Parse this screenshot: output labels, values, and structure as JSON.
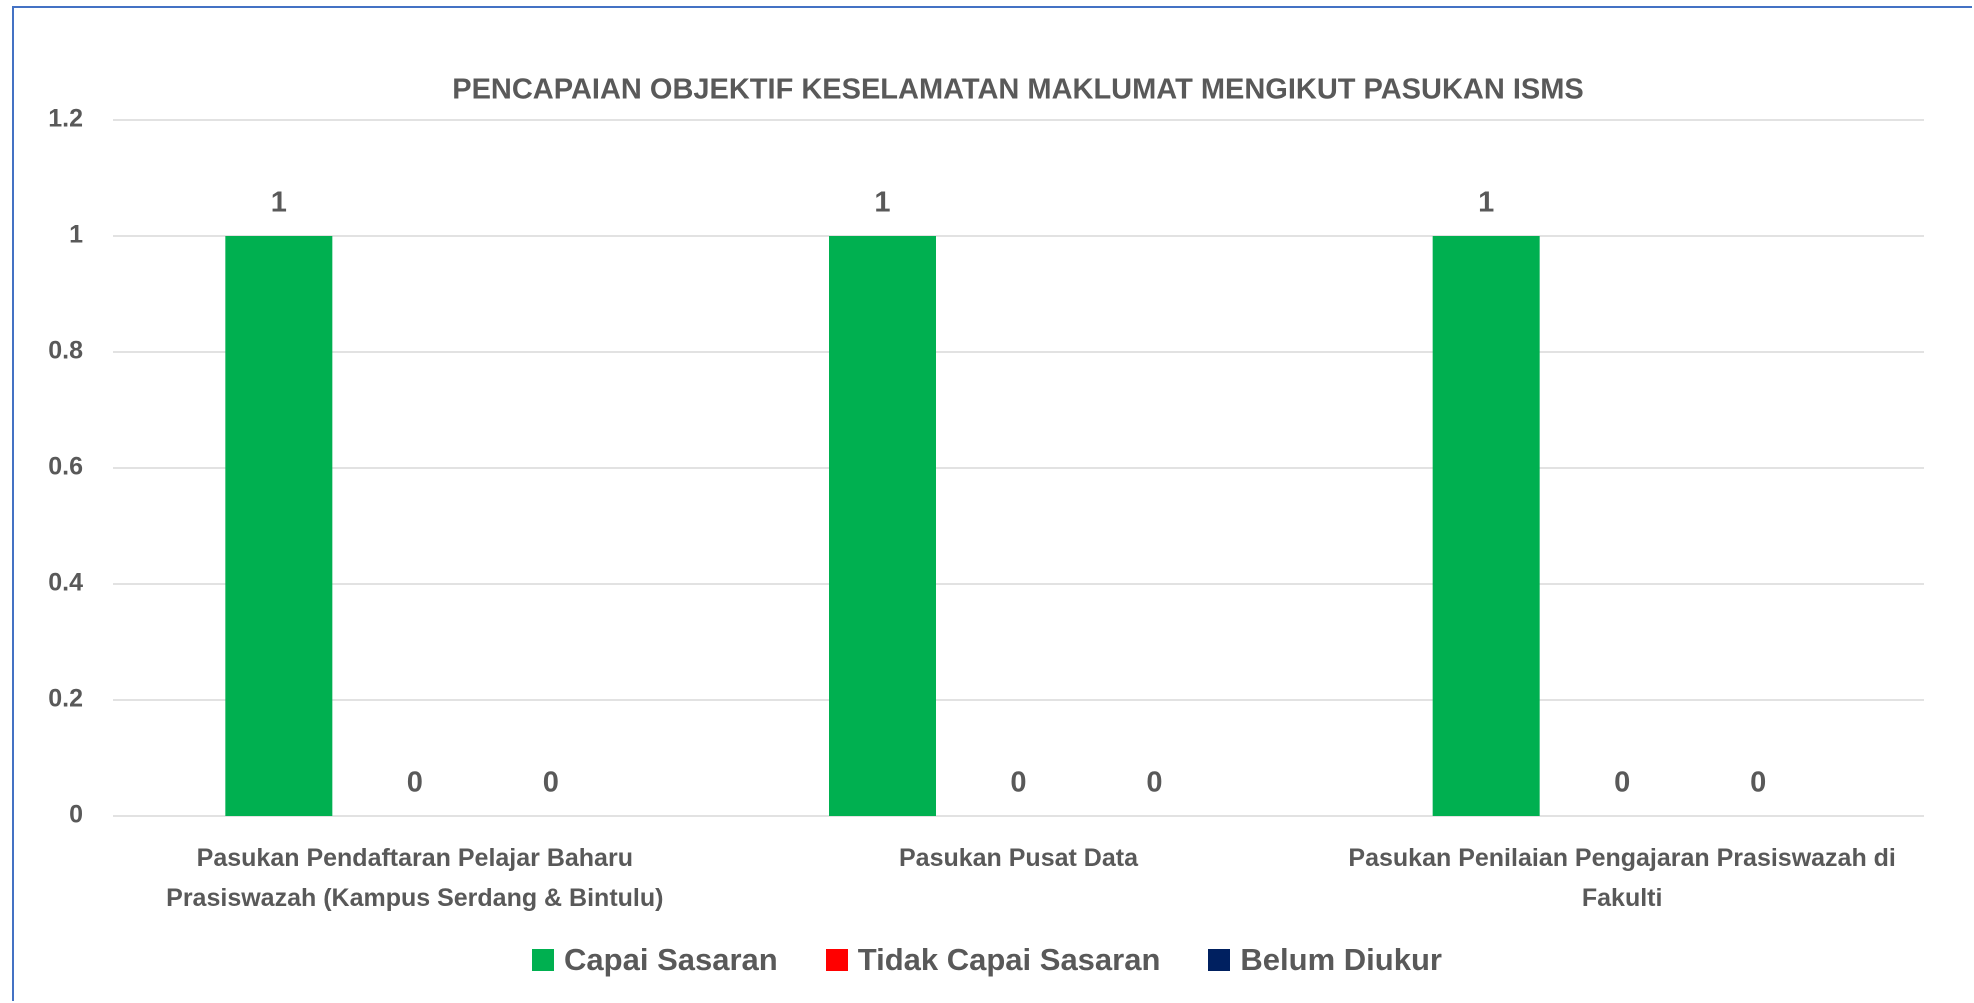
{
  "chart_data": {
    "type": "bar",
    "title": "PENCAPAIAN OBJEKTIF KESELAMATAN MAKLUMAT MENGIKUT PASUKAN ISMS",
    "categories": [
      "Pasukan Pendaftaran Pelajar Baharu Prasiswazah (Kampus Serdang & Bintulu)",
      "Pasukan Pusat Data",
      "Pasukan Penilaian Pengajaran Prasiswazah di Fakulti"
    ],
    "series": [
      {
        "name": "Capai Sasaran",
        "color": "#00b050",
        "values": [
          1,
          1,
          1
        ]
      },
      {
        "name": "Tidak Capai Sasaran",
        "color": "#ff0000",
        "values": [
          0,
          0,
          0
        ]
      },
      {
        "name": "Belum Diukur",
        "color": "#002060",
        "values": [
          0,
          0,
          0
        ]
      }
    ],
    "ylim": [
      0,
      1.2
    ],
    "yticks": [
      0,
      0.2,
      0.4,
      0.6,
      0.8,
      1,
      1.2
    ],
    "grid": true,
    "legend": "bottom"
  }
}
